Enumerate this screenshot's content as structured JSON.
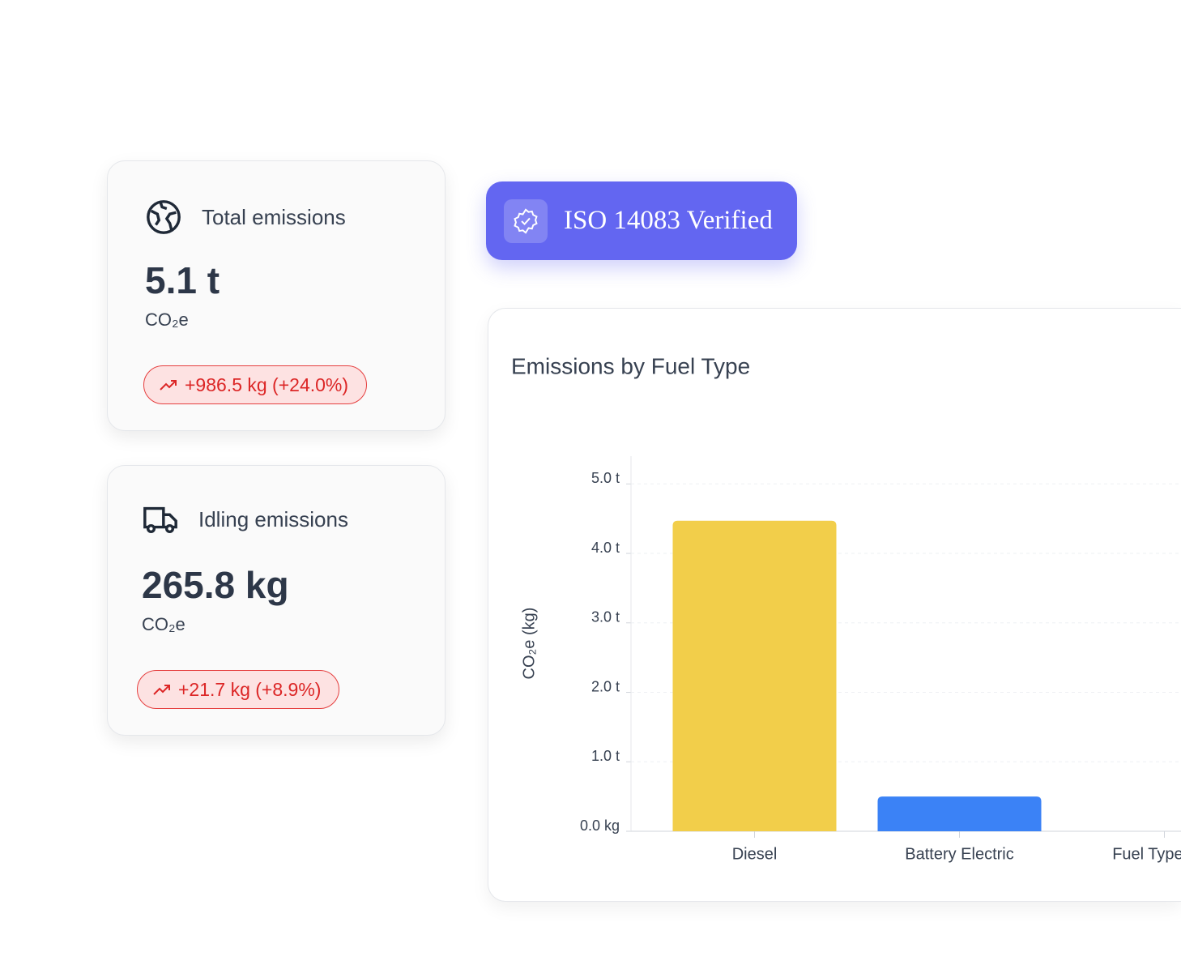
{
  "cards": [
    {
      "title": "Total emissions",
      "value": "5.1 t",
      "unit": "CO₂e",
      "change": "+986.5 kg (+24.0%)"
    },
    {
      "title": "Idling emissions",
      "value": "265.8 kg",
      "unit": "CO₂e",
      "change": "+21.7 kg (+8.9%)"
    }
  ],
  "badge": {
    "label": "ISO 14083 Verified"
  },
  "chart_data": {
    "type": "bar",
    "title": "Emissions by Fuel Type",
    "y_label": "CO₂e (kg)",
    "categories": [
      "Diesel",
      "Battery Electric",
      "Fuel Type Uns"
    ],
    "values": [
      4470,
      500,
      0
    ],
    "colors": [
      "#f2ce4a",
      "#3b82f6",
      "#9ca3af"
    ],
    "ylim": [
      0,
      5400
    ],
    "yticks": [
      {
        "value": 0,
        "label": "0.0 kg"
      },
      {
        "value": 1000,
        "label": "1.0 t"
      },
      {
        "value": 2000,
        "label": "2.0 t"
      },
      {
        "value": 3000,
        "label": "3.0 t"
      },
      {
        "value": 4000,
        "label": "4.0 t"
      },
      {
        "value": 5000,
        "label": "5.0 t"
      }
    ],
    "grid": true
  }
}
